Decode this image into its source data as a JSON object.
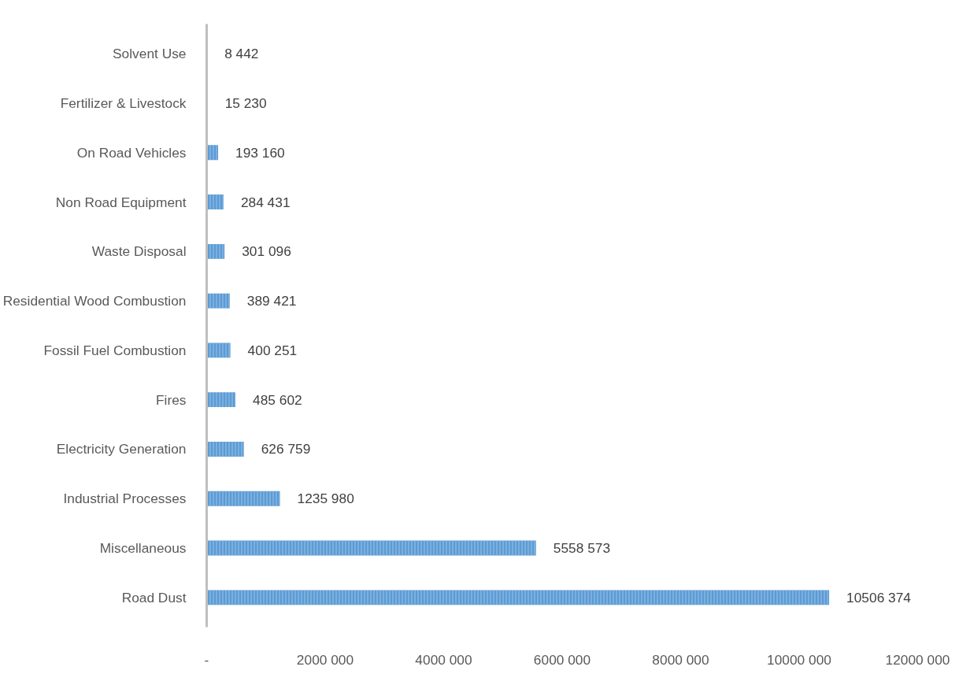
{
  "chart_data": {
    "type": "bar",
    "orientation": "horizontal",
    "categories": [
      "Solvent Use",
      "Fertilizer & Livestock",
      "On Road Vehicles",
      "Non Road Equipment",
      "Waste Disposal",
      "Residential Wood Combustion",
      "Fossil Fuel Combustion",
      "Fires",
      "Electricity Generation",
      "Industrial Processes",
      "Miscellaneous",
      "Road Dust"
    ],
    "values": [
      8442,
      15230,
      193160,
      284431,
      301096,
      389421,
      400251,
      485602,
      626759,
      1235980,
      5558573,
      10506374
    ],
    "value_labels": [
      "8 442",
      "15 230",
      "193 160",
      "284 431",
      "301 096",
      "389 421",
      "400 251",
      "485 602",
      "626 759",
      "1235 980",
      "5558 573",
      "10506 374"
    ],
    "color": "#5b9bd5",
    "xlim": [
      0,
      12000000
    ],
    "xticks": [
      {
        "value": 0,
        "label": "-"
      },
      {
        "value": 2000000,
        "label": "2000 000"
      },
      {
        "value": 4000000,
        "label": "4000 000"
      },
      {
        "value": 6000000,
        "label": "6000 000"
      },
      {
        "value": 8000000,
        "label": "8000 000"
      },
      {
        "value": 10000000,
        "label": "10000 000"
      },
      {
        "value": 12000000,
        "label": "12000 000"
      }
    ],
    "grid": false
  }
}
